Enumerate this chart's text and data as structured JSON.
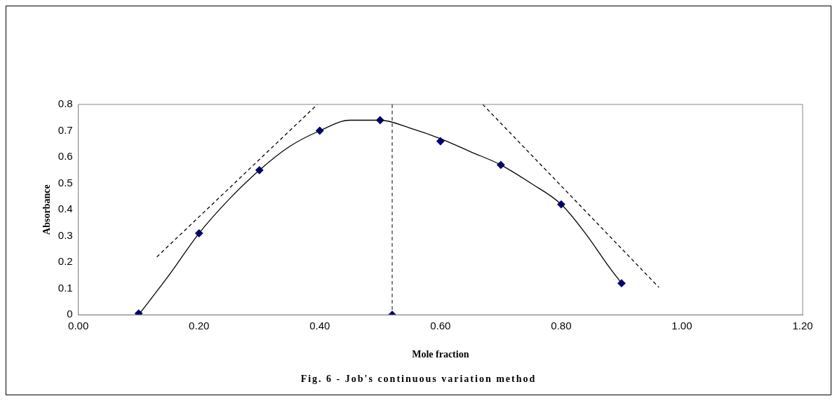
{
  "chart_data": {
    "type": "scatter",
    "xlabel": "Mole fraction",
    "ylabel": "Absorbance",
    "annotations": [
      "Fig. 6 - Job's continuous variation method"
    ],
    "xlim": [
      0,
      1.2
    ],
    "ylim": [
      0,
      0.8
    ],
    "xticks": [
      {
        "value": 0,
        "label": "0.00"
      },
      {
        "value": 0.2,
        "label": "0.20"
      },
      {
        "value": 0.4,
        "label": "0.40"
      },
      {
        "value": 0.6,
        "label": "0.60"
      },
      {
        "value": 0.8,
        "label": "0.80"
      },
      {
        "value": 1,
        "label": "1.00"
      },
      {
        "value": 1.2,
        "label": "1.20"
      }
    ],
    "yticks": [
      0,
      0.1,
      0.2,
      0.3,
      0.4,
      0.5,
      0.6,
      0.7,
      0.8
    ],
    "grid": false,
    "legend": false,
    "series": [
      {
        "type": "line",
        "color": "#000000",
        "marker": "none",
        "line_style": "solid",
        "x": [
          0.1,
          0.15,
          0.2,
          0.25,
          0.3,
          0.35,
          0.4,
          0.45,
          0.5,
          0.55,
          0.6,
          0.65,
          0.7,
          0.75,
          0.8,
          0.84,
          0.88,
          0.9
        ],
        "values": [
          0,
          0.15,
          0.31,
          0.44,
          0.55,
          0.64,
          0.7,
          0.74,
          0.74,
          0.71,
          0.67,
          0.62,
          0.57,
          0.5,
          0.42,
          0.31,
          0.18,
          0.12
        ]
      },
      {
        "type": "line",
        "color": "#000000",
        "marker": "none",
        "line_style": "dashed",
        "x": [
          0.13,
          0.396
        ],
        "values": [
          0.22,
          0.8
        ]
      },
      {
        "type": "line",
        "color": "#000000",
        "marker": "none",
        "line_style": "dashed",
        "x": [
          0.67,
          0.962
        ],
        "values": [
          0.8,
          0.104
        ]
      },
      {
        "color": "#000080",
        "marker": "diamond",
        "x": [
          0.1,
          0.2,
          0.3,
          0.4,
          0.5,
          0.6,
          0.7,
          0.8,
          0.9,
          0.52
        ],
        "values": [
          0.005,
          0.31,
          0.55,
          0.7,
          0.74,
          0.66,
          0.57,
          0.42,
          0.12,
          0
        ]
      }
    ],
    "ref_lines": [
      {
        "axis": "x",
        "value": 0.52,
        "line_style": "dashed",
        "color": "#000000"
      }
    ]
  }
}
